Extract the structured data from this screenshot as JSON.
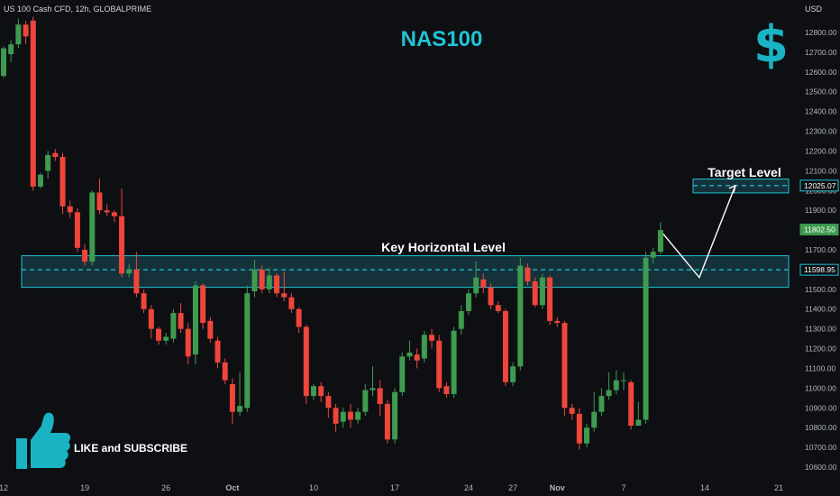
{
  "header": {
    "symbol_info": "US 100 Cash CFD, 12h, GLOBALPRIME",
    "currency": "USD"
  },
  "title": "NAS100",
  "dollar_sign": "$",
  "like_subscribe": "LIKE and SUBSCRIBE",
  "icons": [
    "thumbs-up-icon",
    "dollar-icon"
  ],
  "colors": {
    "background": "#0e0f13",
    "up": "#3e9b4f",
    "down": "#f0453a",
    "accent": "#1fc4d6",
    "zone_fill": "#15323a",
    "zone_border": "#1fc4d6"
  },
  "chart_data": {
    "type": "candlestick",
    "y_axis": {
      "min": 10560,
      "max": 12880,
      "step": 100,
      "ticks": [
        "12800.00",
        "12700.00",
        "12600.00",
        "12500.00",
        "12400.00",
        "12300.00",
        "12200.00",
        "12100.00",
        "12000.00",
        "11900.00",
        "11800.00",
        "11700.00",
        "11600.00",
        "11500.00",
        "11400.00",
        "11300.00",
        "11200.00",
        "11100.00",
        "11000.00",
        "10900.00",
        "10800.00",
        "10700.00",
        "10600.00"
      ]
    },
    "x_axis": {
      "labels": [
        {
          "label": "12",
          "bar": 0
        },
        {
          "label": "19",
          "bar": 11
        },
        {
          "label": "26",
          "bar": 22
        },
        {
          "label": "Oct",
          "bar": 31
        },
        {
          "label": "10",
          "bar": 42
        },
        {
          "label": "17",
          "bar": 53
        },
        {
          "label": "24",
          "bar": 63
        },
        {
          "label": "27",
          "bar": 69
        },
        {
          "label": "Nov",
          "bar": 75
        },
        {
          "label": "7",
          "bar": 84
        },
        {
          "label": "14",
          "bar": 95
        },
        {
          "label": "21",
          "bar": 105
        }
      ]
    },
    "candles": [
      [
        12580,
        12720,
        12570,
        12730
      ],
      [
        12690,
        12740,
        12650,
        12760
      ],
      [
        12740,
        12840,
        12720,
        12870
      ],
      [
        12840,
        12780,
        12740,
        12860
      ],
      [
        12860,
        12020,
        12000,
        12880
      ],
      [
        12020,
        12080,
        12010,
        12090
      ],
      [
        12100,
        12180,
        12060,
        12200
      ],
      [
        12190,
        12170,
        12150,
        12210
      ],
      [
        12170,
        11920,
        11880,
        12190
      ],
      [
        11920,
        11890,
        11860,
        11950
      ],
      [
        11890,
        11710,
        11690,
        11910
      ],
      [
        11700,
        11640,
        11620,
        11730
      ],
      [
        11640,
        11990,
        11620,
        12000
      ],
      [
        11990,
        11900,
        11880,
        12060
      ],
      [
        11900,
        11890,
        11870,
        11930
      ],
      [
        11890,
        11870,
        11840,
        11900
      ],
      [
        11870,
        11580,
        11560,
        12010
      ],
      [
        11580,
        11600,
        11560,
        11630
      ],
      [
        11600,
        11480,
        11460,
        11690
      ],
      [
        11480,
        11400,
        11380,
        11500
      ],
      [
        11400,
        11300,
        11250,
        11420
      ],
      [
        11300,
        11240,
        11220,
        11310
      ],
      [
        11240,
        11260,
        11220,
        11280
      ],
      [
        11250,
        11380,
        11230,
        11400
      ],
      [
        11380,
        11300,
        11280,
        11430
      ],
      [
        11300,
        11160,
        11120,
        11330
      ],
      [
        11170,
        11520,
        11120,
        11540
      ],
      [
        11520,
        11330,
        11300,
        11530
      ],
      [
        11340,
        11250,
        11230,
        11360
      ],
      [
        11240,
        11130,
        11100,
        11260
      ],
      [
        11130,
        11040,
        11020,
        11150
      ],
      [
        11020,
        10880,
        10820,
        11050
      ],
      [
        10880,
        10910,
        10860,
        11080
      ],
      [
        10900,
        11480,
        10880,
        11520
      ],
      [
        11490,
        11600,
        11460,
        11650
      ],
      [
        11600,
        11500,
        11480,
        11620
      ],
      [
        11500,
        11570,
        11480,
        11610
      ],
      [
        11570,
        11480,
        11460,
        11580
      ],
      [
        11480,
        11460,
        11440,
        11590
      ],
      [
        11460,
        11400,
        11380,
        11480
      ],
      [
        11400,
        11310,
        11280,
        11410
      ],
      [
        11310,
        10960,
        10920,
        11320
      ],
      [
        10960,
        11010,
        10940,
        11020
      ],
      [
        11010,
        10960,
        10930,
        11030
      ],
      [
        10960,
        10900,
        10850,
        10980
      ],
      [
        10900,
        10820,
        10780,
        10920
      ],
      [
        10830,
        10880,
        10800,
        10900
      ],
      [
        10880,
        10840,
        10800,
        10920
      ],
      [
        10840,
        10880,
        10820,
        10900
      ],
      [
        10880,
        10990,
        10860,
        11020
      ],
      [
        10990,
        11000,
        10960,
        11110
      ],
      [
        11000,
        10920,
        10860,
        11040
      ],
      [
        10920,
        10740,
        10720,
        10940
      ],
      [
        10740,
        10980,
        10720,
        11000
      ],
      [
        10980,
        11160,
        10960,
        11180
      ],
      [
        11160,
        11180,
        11140,
        11240
      ],
      [
        11170,
        11140,
        11100,
        11200
      ],
      [
        11150,
        11270,
        11130,
        11290
      ],
      [
        11270,
        11240,
        11200,
        11300
      ],
      [
        11240,
        11000,
        10980,
        11270
      ],
      [
        11010,
        10970,
        10950,
        11030
      ],
      [
        10970,
        11290,
        10950,
        11310
      ],
      [
        11300,
        11390,
        11270,
        11420
      ],
      [
        11390,
        11480,
        11370,
        11500
      ],
      [
        11480,
        11560,
        11460,
        11640
      ],
      [
        11550,
        11510,
        11480,
        11580
      ],
      [
        11510,
        11420,
        11400,
        11530
      ],
      [
        11420,
        11390,
        11380,
        11440
      ],
      [
        11390,
        11030,
        11010,
        11400
      ],
      [
        11030,
        11110,
        11010,
        11130
      ],
      [
        11110,
        11620,
        11090,
        11660
      ],
      [
        11610,
        11540,
        11520,
        11630
      ],
      [
        11540,
        11420,
        11410,
        11560
      ],
      [
        11420,
        11560,
        11400,
        11580
      ],
      [
        11560,
        11340,
        11320,
        11570
      ],
      [
        11340,
        11330,
        11310,
        11360
      ],
      [
        11330,
        10900,
        10860,
        11340
      ],
      [
        10900,
        10870,
        10840,
        10920
      ],
      [
        10870,
        10720,
        10690,
        10900
      ],
      [
        10720,
        10800,
        10700,
        10820
      ],
      [
        10800,
        10880,
        10780,
        10980
      ],
      [
        10880,
        10960,
        10860,
        11000
      ],
      [
        10960,
        10990,
        10940,
        11080
      ],
      [
        10990,
        11040,
        10970,
        11090
      ],
      [
        11040,
        11040,
        10990,
        11080
      ],
      [
        11030,
        10810,
        10790,
        11040
      ],
      [
        10810,
        10840,
        10810,
        10930
      ],
      [
        10840,
        11660,
        10820,
        11690
      ],
      [
        11660,
        11690,
        11630,
        11710
      ],
      [
        11690,
        11800,
        11680,
        11840
      ]
    ],
    "annotations": {
      "key_level": {
        "label": "Key Horizontal Level",
        "price": 11598.95,
        "top": 11670,
        "bottom": 11510
      },
      "target": {
        "label": "Target Level",
        "price": 12025.07,
        "top": 12058,
        "bottom": 11988
      },
      "projection": [
        [
          11780,
          0
        ],
        [
          11560,
          1
        ],
        [
          12025.07,
          2
        ]
      ]
    },
    "price_tags": [
      {
        "value": "12025.07",
        "price": 12025.07,
        "style": "box"
      },
      {
        "value": "11802.50",
        "price": 11802.5,
        "style": "green"
      },
      {
        "value": "11598.95",
        "price": 11598.95,
        "style": "box"
      }
    ]
  }
}
